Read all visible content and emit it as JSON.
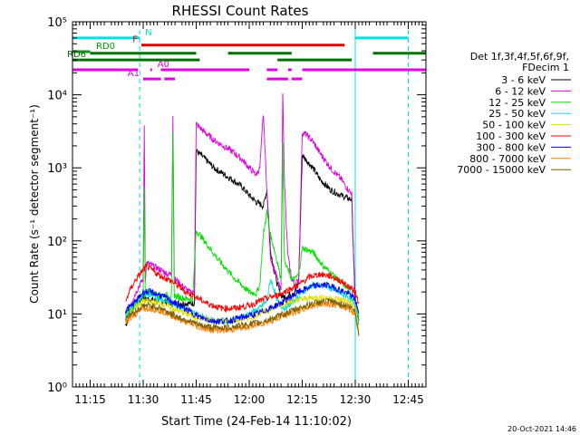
{
  "chart_data": {
    "type": "line",
    "title": "RHESSI Count Rates",
    "xlabel": "Start Time (24-Feb-14 11:10:02)",
    "ylabel": "Count Rate (s⁻¹ detector segment⁻¹)",
    "x_unit": "minutes after 11:10:02",
    "xlim": [
      0,
      100
    ],
    "ylim": [
      1,
      100000
    ],
    "y_scale": "log",
    "x_ticks": [
      {
        "x": 5,
        "label": "11:15"
      },
      {
        "x": 20,
        "label": "11:30"
      },
      {
        "x": 35,
        "label": "11:45"
      },
      {
        "x": 50,
        "label": "12:00"
      },
      {
        "x": 65,
        "label": "12:15"
      },
      {
        "x": 80,
        "label": "12:30"
      },
      {
        "x": 95,
        "label": "12:45"
      }
    ],
    "y_ticks": [
      {
        "y": 1,
        "label": "10⁰"
      },
      {
        "y": 10,
        "label": "10¹"
      },
      {
        "y": 100,
        "label": "10²"
      },
      {
        "y": 1000,
        "label": "10³"
      },
      {
        "y": 10000,
        "label": "10⁴"
      },
      {
        "y": 100000,
        "label": "10⁵"
      }
    ],
    "legend_title": [
      "Det 1f,3f,4f,5f,6f,9f,",
      "FDecim 1"
    ],
    "legend_position": "right",
    "timestamp": "20-Oct-2021 14:46",
    "series": [
      {
        "name": "3 - 6 keV",
        "color": "#000000",
        "x": [
          15,
          18,
          19,
          20,
          20.5,
          21,
          25,
          27,
          28,
          30,
          33,
          34.5,
          35,
          37,
          40,
          45,
          48,
          50,
          52,
          54,
          55,
          56,
          57,
          58,
          59,
          60,
          63,
          64,
          65,
          66,
          68,
          70,
          73,
          76,
          78,
          79,
          80,
          80.5,
          81
        ],
        "y": [
          7,
          14,
          15,
          17,
          16,
          16,
          15,
          14.5,
          14,
          14,
          14,
          14,
          1700,
          1400,
          1000,
          700,
          550,
          420,
          340,
          300,
          500,
          75,
          40,
          25,
          18,
          17,
          20,
          30,
          1500,
          1300,
          1000,
          700,
          500,
          420,
          380,
          370,
          13,
          11,
          8
        ]
      },
      {
        "name": "6 - 12 keV",
        "color": "#e000e0",
        "x": [
          15,
          18,
          19,
          20,
          20.3,
          20.6,
          21,
          25,
          27,
          28,
          28.4,
          28.8,
          29,
          33,
          34.5,
          35,
          37,
          40,
          45,
          48,
          50,
          52,
          53,
          54,
          55,
          56,
          58,
          59,
          59.5,
          60,
          60.5,
          61,
          62,
          63,
          64,
          65,
          66,
          68,
          70,
          73,
          76,
          78,
          79,
          80,
          80.5,
          81
        ],
        "y": [
          10,
          20,
          25,
          30,
          4000,
          30,
          50,
          40,
          35,
          35,
          5500,
          30,
          30,
          20,
          20,
          4000,
          3200,
          2400,
          1700,
          1300,
          1000,
          800,
          1000,
          5500,
          500,
          60,
          30,
          20,
          11000,
          600,
          150,
          60,
          30,
          25,
          30,
          3000,
          2900,
          2300,
          1600,
          1000,
          700,
          500,
          450,
          11,
          9,
          7
        ]
      },
      {
        "name": "12 - 25 keV",
        "color": "#00e000",
        "x": [
          15,
          18,
          20,
          20.3,
          20.6,
          21,
          25,
          28,
          28.4,
          28.8,
          30,
          33,
          34,
          35,
          38,
          42,
          46,
          50,
          52,
          53,
          54,
          55,
          56,
          57,
          58,
          59,
          59.5,
          60,
          61,
          62,
          63,
          64,
          65,
          68,
          71,
          75,
          78,
          80,
          81
        ],
        "y": [
          10,
          14,
          18,
          500,
          18,
          20,
          18,
          18,
          3000,
          18,
          17,
          16,
          16,
          140,
          90,
          50,
          30,
          20,
          19,
          25,
          120,
          250,
          120,
          80,
          50,
          30,
          2000,
          50,
          40,
          30,
          30,
          35,
          80,
          70,
          45,
          30,
          22,
          15,
          8
        ]
      },
      {
        "name": "25 - 50 keV",
        "color": "#00e0e0",
        "x": [
          15,
          18,
          20,
          22,
          25,
          30,
          35,
          40,
          45,
          50,
          53,
          55,
          56,
          57,
          58,
          59,
          60,
          62,
          65,
          68,
          72,
          75,
          78,
          80,
          81
        ],
        "y": [
          9,
          14,
          19,
          18,
          16,
          13,
          10,
          8,
          8,
          10,
          12,
          15,
          30,
          22,
          15,
          13,
          12,
          14,
          20,
          25,
          24,
          20,
          17,
          14,
          7
        ]
      },
      {
        "name": "50 - 100 keV",
        "color": "#e0e000",
        "x": [
          15,
          18,
          20,
          25,
          30,
          35,
          40,
          45,
          50,
          55,
          60,
          65,
          70,
          75,
          78,
          80,
          81
        ],
        "y": [
          8,
          13,
          15,
          14,
          11,
          9,
          8,
          8,
          9,
          11,
          14,
          16,
          17,
          16,
          15,
          12,
          6
        ]
      },
      {
        "name": "100 - 300 keV",
        "color": "#ff0000",
        "x": [
          15,
          16,
          18,
          20,
          21,
          23,
          25,
          28,
          30,
          32,
          34,
          38,
          42,
          46,
          50,
          53,
          56,
          58,
          60,
          64,
          67,
          70,
          73,
          76,
          78,
          80,
          81
        ],
        "y": [
          14,
          20,
          30,
          40,
          45,
          38,
          33,
          28,
          24,
          20,
          18,
          14,
          12,
          12,
          13,
          15,
          17,
          18,
          20,
          25,
          32,
          35,
          33,
          28,
          24,
          20,
          14
        ]
      },
      {
        "name": "300 - 800 keV",
        "color": "#0000ff",
        "x": [
          15,
          18,
          20,
          22,
          25,
          28,
          30,
          33,
          36,
          40,
          44,
          48,
          52,
          56,
          60,
          64,
          68,
          72,
          75,
          78,
          80,
          81
        ],
        "y": [
          11,
          15,
          20,
          20,
          18,
          15,
          13,
          11,
          9,
          8,
          8,
          9,
          10,
          12,
          15,
          20,
          24,
          25,
          22,
          19,
          16,
          10
        ]
      },
      {
        "name": "800 - 7000 keV",
        "color": "#ff8000",
        "x": [
          15,
          18,
          20,
          22,
          25,
          28,
          30,
          33,
          36,
          40,
          44,
          48,
          52,
          56,
          60,
          64,
          68,
          72,
          75,
          78,
          80,
          81
        ],
        "y": [
          8,
          10,
          12,
          12,
          11,
          9.5,
          8.5,
          7.5,
          6.5,
          6,
          6,
          6.5,
          7,
          8,
          9.5,
          11,
          13,
          14,
          13,
          12,
          10,
          5
        ]
      },
      {
        "name": "7000 - 15000 keV",
        "color": "#806000",
        "x": [
          15,
          18,
          20,
          22,
          25,
          28,
          30,
          33,
          36,
          40,
          44,
          48,
          52,
          56,
          60,
          64,
          68,
          72,
          75,
          78,
          80,
          81
        ],
        "y": [
          9,
          11,
          13,
          13,
          12,
          10,
          9,
          8,
          7,
          6.5,
          6.5,
          7,
          7.5,
          8.5,
          10,
          12,
          14,
          15,
          14,
          13,
          11,
          5
        ]
      }
    ],
    "annotation_bars": [
      {
        "label": "N",
        "color": "#00e0e0",
        "y": 60000,
        "segments": [
          [
            0,
            19
          ],
          [
            80,
            95
          ]
        ]
      },
      {
        "label": "F",
        "color": "#e00000",
        "y": 48000,
        "segments": [
          [
            19.5,
            77
          ]
        ]
      },
      {
        "label": "RD0",
        "color": "#00a000",
        "y": 39000,
        "segments": [
          [
            0,
            5
          ]
        ]
      },
      {
        "label": "",
        "color": "#007000",
        "y": 37000,
        "segments": [
          [
            5,
            35
          ],
          [
            44,
            62
          ],
          [
            85,
            100
          ]
        ]
      },
      {
        "label": "RD6",
        "color": "#007000",
        "y": 30000,
        "segments": [
          [
            0,
            2
          ]
        ]
      },
      {
        "label": "",
        "color": "#007000",
        "y": 30000,
        "segments": [
          [
            2,
            36
          ],
          [
            58,
            79
          ]
        ]
      },
      {
        "label": "A0",
        "color": "#e000e0",
        "y": 22000,
        "segments": [
          [
            0,
            18.5
          ],
          [
            22,
            22.5
          ],
          [
            25,
            50
          ],
          [
            55,
            58
          ],
          [
            61,
            62
          ],
          [
            65,
            100
          ]
        ]
      },
      {
        "label": "A1",
        "color": "#e000e0",
        "y": 16500,
        "segments": [
          [
            20,
            25
          ],
          [
            26,
            29
          ],
          [
            55,
            61
          ],
          [
            62,
            65
          ]
        ]
      }
    ],
    "vertical_markers": [
      {
        "x": 0,
        "color": "#00e0e0",
        "style": "solid"
      },
      {
        "x": 19,
        "color": "#00e0e0",
        "style": "dashed"
      },
      {
        "x": 80,
        "color": "#00e0e0",
        "style": "solid"
      },
      {
        "x": 95,
        "color": "#00e0e0",
        "style": "dashed"
      }
    ]
  }
}
